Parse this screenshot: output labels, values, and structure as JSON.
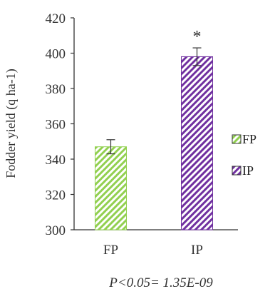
{
  "chart_data": {
    "type": "bar",
    "categories": [
      "FP",
      "IP"
    ],
    "series": [
      {
        "name": "FP",
        "values": [
          347,
          null
        ],
        "error": [
          4,
          null
        ],
        "color": "#92d050"
      },
      {
        "name": "IP",
        "values": [
          null,
          398
        ],
        "error": [
          null,
          5
        ],
        "color": "#7030a0"
      }
    ],
    "ylabel": "Fodder yield (q ha-1)",
    "ylim": [
      300,
      420
    ],
    "yticks": [
      300,
      320,
      340,
      360,
      380,
      400,
      420
    ],
    "legend": "right",
    "legend_entries": [
      "FP",
      "IP"
    ],
    "annotations": {
      "significance_marker": "*",
      "p_value_text": "P<0.05= 1.35E-09"
    },
    "grid": false
  }
}
